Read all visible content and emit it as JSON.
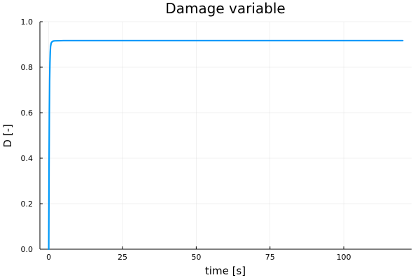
{
  "chart_data": {
    "type": "line",
    "title": "Damage variable",
    "xlabel": "time [s]",
    "ylabel": "D [-]",
    "xlim": [
      -3,
      123
    ],
    "ylim": [
      0,
      1
    ],
    "xticks": [
      0,
      25,
      50,
      75,
      100
    ],
    "xtick_labels": [
      "0",
      "25",
      "50",
      "75",
      "100"
    ],
    "yticks": [
      0,
      0.2,
      0.4,
      0.6,
      0.8,
      1.0
    ],
    "ytick_labels": [
      "0.0",
      "0.2",
      "0.4",
      "0.6",
      "0.8",
      "1.0"
    ],
    "grid": true,
    "legend": "none",
    "series_color": "#009AFA",
    "series": [
      {
        "x": [
          0,
          0.1,
          0.2,
          0.3,
          0.4,
          0.5,
          0.6,
          0.8,
          1.0,
          1.5,
          2,
          5,
          10,
          20,
          40,
          60,
          80,
          100,
          120
        ],
        "y": [
          0,
          0.35,
          0.6,
          0.74,
          0.82,
          0.865,
          0.89,
          0.905,
          0.91,
          0.915,
          0.916,
          0.917,
          0.917,
          0.917,
          0.917,
          0.917,
          0.917,
          0.917,
          0.917
        ]
      }
    ]
  }
}
